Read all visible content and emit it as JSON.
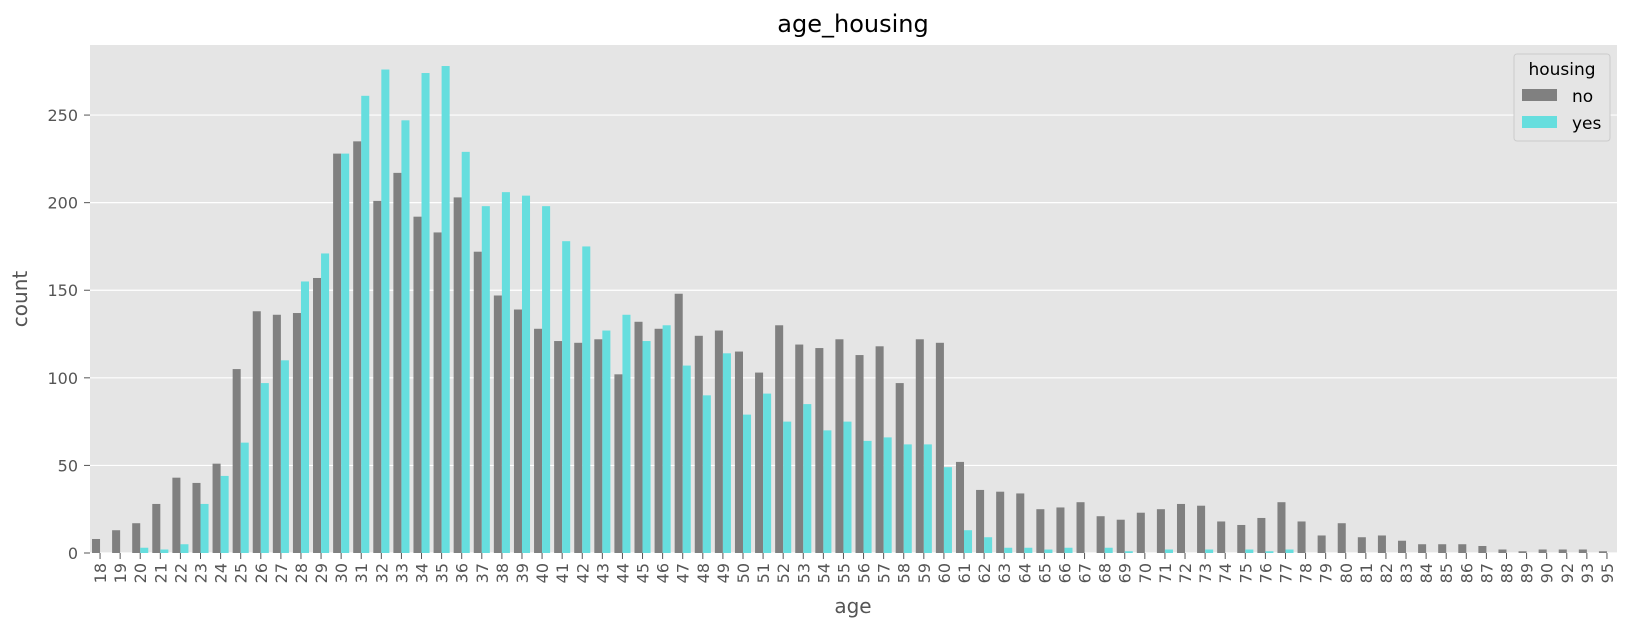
{
  "chart_data": {
    "type": "bar",
    "title": "age_housing",
    "xlabel": "age",
    "ylabel": "count",
    "ylim": [
      0,
      290
    ],
    "yticks": [
      0,
      50,
      100,
      150,
      200,
      250
    ],
    "grid": true,
    "legend": {
      "title": "housing",
      "placement": "top-right"
    },
    "categories": [
      "18",
      "19",
      "20",
      "21",
      "22",
      "23",
      "24",
      "25",
      "26",
      "27",
      "28",
      "29",
      "30",
      "31",
      "32",
      "33",
      "34",
      "35",
      "36",
      "37",
      "38",
      "39",
      "40",
      "41",
      "42",
      "43",
      "44",
      "45",
      "46",
      "47",
      "48",
      "49",
      "50",
      "51",
      "52",
      "53",
      "54",
      "55",
      "56",
      "57",
      "58",
      "59",
      "60",
      "61",
      "62",
      "63",
      "64",
      "65",
      "66",
      "67",
      "68",
      "69",
      "70",
      "71",
      "72",
      "73",
      "74",
      "75",
      "76",
      "77",
      "78",
      "79",
      "80",
      "81",
      "82",
      "83",
      "84",
      "85",
      "86",
      "87",
      "88",
      "89",
      "90",
      "92",
      "93",
      "95"
    ],
    "series": [
      {
        "name": "no",
        "color": "#808080",
        "values": [
          8,
          13,
          17,
          28,
          43,
          40,
          51,
          105,
          138,
          136,
          137,
          157,
          228,
          235,
          201,
          217,
          192,
          183,
          203,
          172,
          147,
          139,
          128,
          121,
          120,
          122,
          102,
          132,
          128,
          148,
          124,
          127,
          115,
          103,
          130,
          119,
          117,
          122,
          113,
          118,
          97,
          122,
          120,
          52,
          36,
          35,
          34,
          25,
          26,
          29,
          21,
          19,
          23,
          25,
          28,
          27,
          18,
          16,
          20,
          29,
          18,
          10,
          17,
          9,
          10,
          7,
          5,
          5,
          5,
          4,
          2,
          1,
          2,
          2,
          2,
          1
        ]
      },
      {
        "name": "yes",
        "color": "#66dede",
        "values": [
          0,
          0,
          3,
          2,
          5,
          28,
          44,
          63,
          97,
          110,
          155,
          171,
          228,
          261,
          276,
          247,
          274,
          278,
          229,
          198,
          206,
          204,
          198,
          178,
          175,
          127,
          136,
          121,
          130,
          107,
          90,
          114,
          79,
          91,
          75,
          85,
          70,
          75,
          64,
          66,
          62,
          62,
          49,
          13,
          9,
          3,
          3,
          2,
          3,
          0,
          3,
          1,
          0,
          2,
          0,
          2,
          0,
          2,
          1,
          2,
          0,
          0,
          0,
          0,
          0,
          0,
          0,
          0,
          0,
          0,
          0,
          0,
          0,
          0,
          0,
          0
        ]
      }
    ]
  }
}
